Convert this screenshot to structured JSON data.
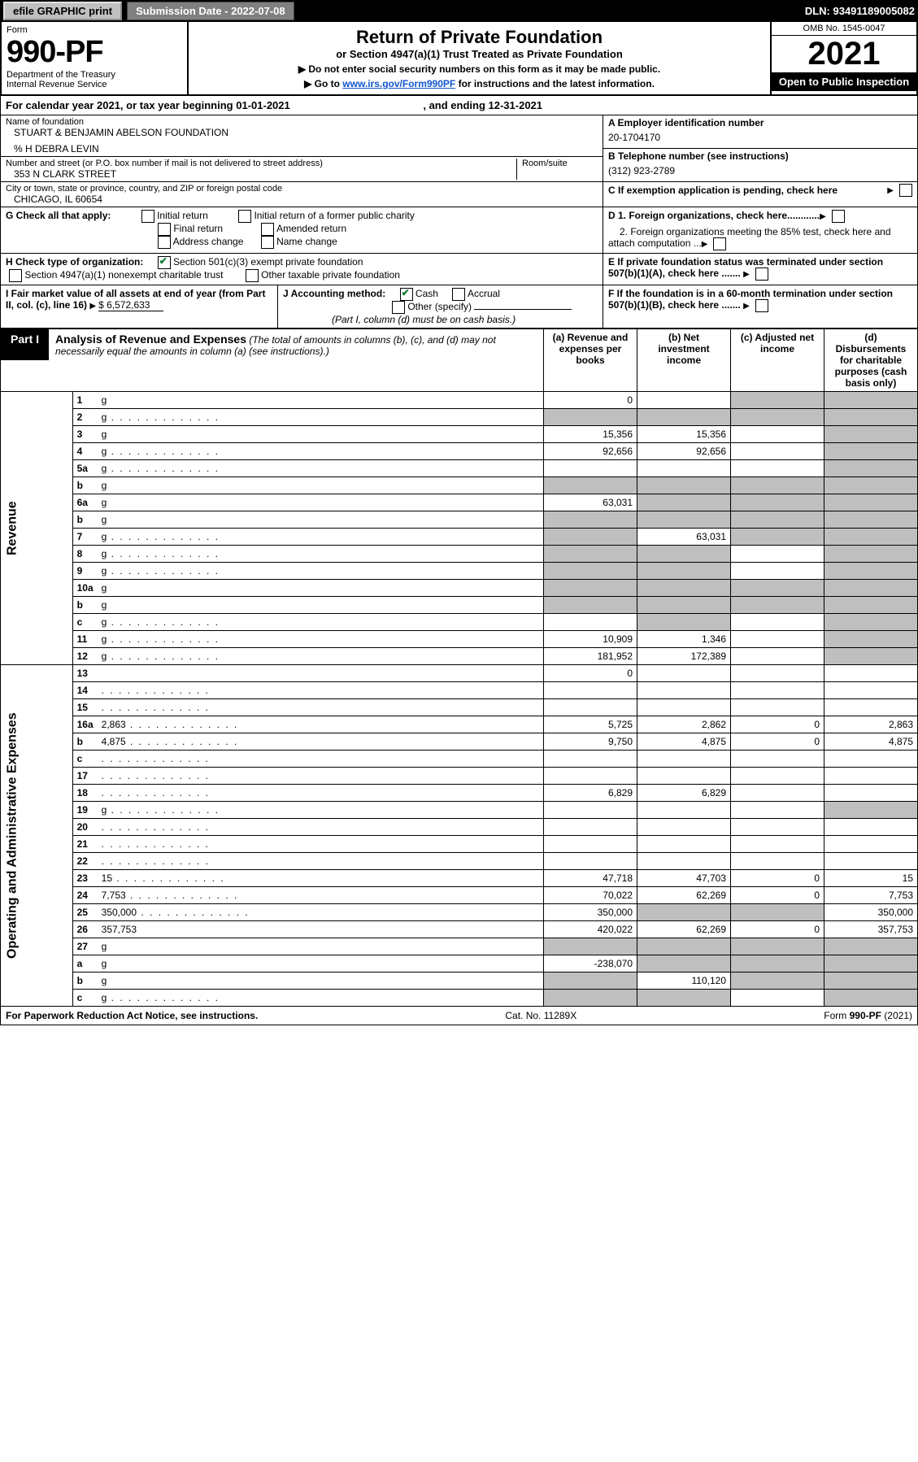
{
  "colors": {
    "black": "#000000",
    "white": "#ffffff",
    "grey_btn": "#c0c0c0",
    "grey_sub": "#808080",
    "grey_cell": "#bfbfbf",
    "link": "#1155cc",
    "check_green": "#0a7a32"
  },
  "topbar": {
    "efile": "efile GRAPHIC print",
    "submission": "Submission Date - 2022-07-08",
    "dln": "DLN: 93491189005082"
  },
  "header": {
    "form_word": "Form",
    "form_number": "990-PF",
    "dept": "Department of the Treasury",
    "irs": "Internal Revenue Service",
    "title": "Return of Private Foundation",
    "subtitle": "or Section 4947(a)(1) Trust Treated as Private Foundation",
    "note1": "▶ Do not enter social security numbers on this form as it may be made public.",
    "note2_pre": "▶ Go to ",
    "note2_link": "www.irs.gov/Form990PF",
    "note2_post": " for instructions and the latest information.",
    "omb": "OMB No. 1545-0047",
    "year": "2021",
    "open": "Open to Public Inspection"
  },
  "calyear": {
    "text_pre": "For calendar year 2021, or tax year beginning ",
    "begin": "01-01-2021",
    "text_mid": " , and ending ",
    "end": "12-31-2021"
  },
  "entity": {
    "name_lbl": "Name of foundation",
    "name": "STUART & BENJAMIN ABELSON FOUNDATION",
    "care_of": "% H DEBRA LEVIN",
    "addr_lbl": "Number and street (or P.O. box number if mail is not delivered to street address)",
    "addr": "353 N CLARK STREET",
    "room_lbl": "Room/suite",
    "city_lbl": "City or town, state or province, country, and ZIP or foreign postal code",
    "city": "CHICAGO, IL  60654",
    "A_lbl": "A Employer identification number",
    "A_val": "20-1704170",
    "B_lbl": "B Telephone number (see instructions)",
    "B_val": "(312) 923-2789",
    "C_lbl": "C If exemption application is pending, check here",
    "D1": "D 1. Foreign organizations, check here............",
    "D2": "2. Foreign organizations meeting the 85% test, check here and attach computation ...",
    "E": "E  If private foundation status was terminated under section 507(b)(1)(A), check here .......",
    "F": "F  If the foundation is in a 60-month termination under section 507(b)(1)(B), check here .......",
    "G_lbl": "G Check all that apply:",
    "G_opts": [
      "Initial return",
      "Final return",
      "Address change",
      "Initial return of a former public charity",
      "Amended return",
      "Name change"
    ],
    "H_lbl": "H Check type of organization:",
    "H_opt1": "Section 501(c)(3) exempt private foundation",
    "H_opt2": "Section 4947(a)(1) nonexempt charitable trust",
    "H_opt3": "Other taxable private foundation",
    "I_lbl": "I Fair market value of all assets at end of year (from Part II, col. (c), line 16)",
    "I_val": "$  6,572,633",
    "J_lbl": "J Accounting method:",
    "J_cash": "Cash",
    "J_accrual": "Accrual",
    "J_other": "Other (specify)",
    "J_note": "(Part I, column (d) must be on cash basis.)"
  },
  "part1": {
    "tab": "Part I",
    "title": "Analysis of Revenue and Expenses",
    "title_note": " (The total of amounts in columns (b), (c), and (d) may not necessarily equal the amounts in column (a) (see instructions).)",
    "cols": {
      "a": "(a) Revenue and expenses per books",
      "b": "(b) Net investment income",
      "c": "(c) Adjusted net income",
      "d": "(d) Disbursements for charitable purposes (cash basis only)"
    },
    "side_rev": "Revenue",
    "side_exp": "Operating and Administrative Expenses",
    "rows": [
      {
        "n": "1",
        "d": "g",
        "a": "0",
        "b": "",
        "c": "g"
      },
      {
        "n": "2",
        "d": "g",
        "a": "g",
        "b": "g",
        "c": "g",
        "dots": true
      },
      {
        "n": "3",
        "d": "g",
        "a": "15,356",
        "b": "15,356",
        "c": ""
      },
      {
        "n": "4",
        "d": "g",
        "a": "92,656",
        "b": "92,656",
        "c": "",
        "dots": true
      },
      {
        "n": "5a",
        "d": "g",
        "a": "",
        "b": "",
        "c": "",
        "dots": true
      },
      {
        "n": "b",
        "d": "g",
        "a": "g",
        "b": "g",
        "c": "g"
      },
      {
        "n": "6a",
        "d": "g",
        "a": "63,031",
        "b": "g",
        "c": "g"
      },
      {
        "n": "b",
        "d": "g",
        "a": "g",
        "b": "g",
        "c": "g"
      },
      {
        "n": "7",
        "d": "g",
        "a": "g",
        "b": "63,031",
        "c": "g",
        "dots": true
      },
      {
        "n": "8",
        "d": "g",
        "a": "g",
        "b": "g",
        "c": "",
        "dots": true
      },
      {
        "n": "9",
        "d": "g",
        "a": "g",
        "b": "g",
        "c": "",
        "dots": true
      },
      {
        "n": "10a",
        "d": "g",
        "a": "g",
        "b": "g",
        "c": "g"
      },
      {
        "n": "b",
        "d": "g",
        "a": "g",
        "b": "g",
        "c": "g"
      },
      {
        "n": "c",
        "d": "g",
        "a": "",
        "b": "g",
        "c": "",
        "dots": true
      },
      {
        "n": "11",
        "d": "g",
        "a": "10,909",
        "b": "1,346",
        "c": "",
        "dots": true
      },
      {
        "n": "12",
        "d": "g",
        "a": "181,952",
        "b": "172,389",
        "c": "",
        "dots": true
      },
      {
        "n": "13",
        "d": "",
        "a": "0",
        "b": "",
        "c": ""
      },
      {
        "n": "14",
        "d": "",
        "a": "",
        "b": "",
        "c": "",
        "dots": true
      },
      {
        "n": "15",
        "d": "",
        "a": "",
        "b": "",
        "c": "",
        "dots": true
      },
      {
        "n": "16a",
        "d": "2,863",
        "a": "5,725",
        "b": "2,862",
        "c": "0",
        "dots": true
      },
      {
        "n": "b",
        "d": "4,875",
        "a": "9,750",
        "b": "4,875",
        "c": "0",
        "dots": true
      },
      {
        "n": "c",
        "d": "",
        "a": "",
        "b": "",
        "c": "",
        "dots": true
      },
      {
        "n": "17",
        "d": "",
        "a": "",
        "b": "",
        "c": "",
        "dots": true
      },
      {
        "n": "18",
        "d": "",
        "a": "6,829",
        "b": "6,829",
        "c": "",
        "dots": true
      },
      {
        "n": "19",
        "d": "g",
        "a": "",
        "b": "",
        "c": "",
        "dots": true
      },
      {
        "n": "20",
        "d": "",
        "a": "",
        "b": "",
        "c": "",
        "dots": true
      },
      {
        "n": "21",
        "d": "",
        "a": "",
        "b": "",
        "c": "",
        "dots": true
      },
      {
        "n": "22",
        "d": "",
        "a": "",
        "b": "",
        "c": "",
        "dots": true
      },
      {
        "n": "23",
        "d": "15",
        "a": "47,718",
        "b": "47,703",
        "c": "0",
        "dots": true
      },
      {
        "n": "24",
        "d": "7,753",
        "a": "70,022",
        "b": "62,269",
        "c": "0",
        "dots": true
      },
      {
        "n": "25",
        "d": "350,000",
        "a": "350,000",
        "b": "g",
        "c": "g",
        "dots": true
      },
      {
        "n": "26",
        "d": "357,753",
        "a": "420,022",
        "b": "62,269",
        "c": "0"
      },
      {
        "n": "27",
        "d": "g",
        "a": "g",
        "b": "g",
        "c": "g"
      },
      {
        "n": "a",
        "d": "g",
        "a": "-238,070",
        "b": "g",
        "c": "g"
      },
      {
        "n": "b",
        "d": "g",
        "a": "g",
        "b": "110,120",
        "c": "g"
      },
      {
        "n": "c",
        "d": "g",
        "a": "g",
        "b": "g",
        "c": "",
        "dots": true
      }
    ]
  },
  "footer": {
    "left": "For Paperwork Reduction Act Notice, see instructions.",
    "mid": "Cat. No. 11289X",
    "right": "Form 990-PF (2021)"
  }
}
